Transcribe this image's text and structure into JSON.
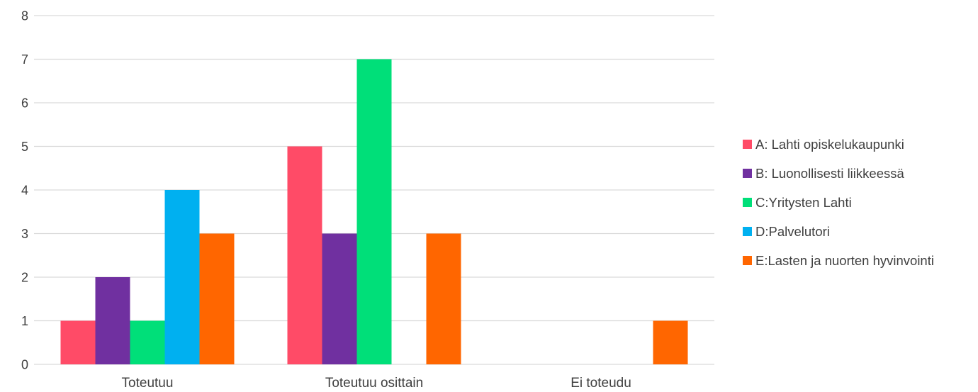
{
  "chart_data": {
    "type": "bar",
    "categories": [
      "Toteutuu",
      "Toteutuu osittain",
      "Ei toteudu"
    ],
    "series": [
      {
        "name": "A: Lahti opiskelukaupunki",
        "color": "#FF4B67",
        "values": [
          1,
          5,
          0
        ]
      },
      {
        "name": "B: Luonollisesti liikkeessä",
        "color": "#7030A0",
        "values": [
          2,
          3,
          0
        ]
      },
      {
        "name": "C:Yritysten Lahti",
        "color": "#00DF79",
        "values": [
          1,
          7,
          0
        ]
      },
      {
        "name": "D:Palvelutori",
        "color": "#00B0F0",
        "values": [
          4,
          0,
          0
        ]
      },
      {
        "name": "E:Lasten ja nuorten hyvinvointi",
        "color": "#FF6600",
        "values": [
          3,
          3,
          1
        ]
      }
    ],
    "ylim": [
      0,
      8
    ],
    "yticks": [
      "0",
      "1",
      "2",
      "3",
      "4",
      "5",
      "6",
      "7",
      "8"
    ],
    "grid": true,
    "legend_position": "right",
    "title": "",
    "xlabel": "",
    "ylabel": ""
  }
}
